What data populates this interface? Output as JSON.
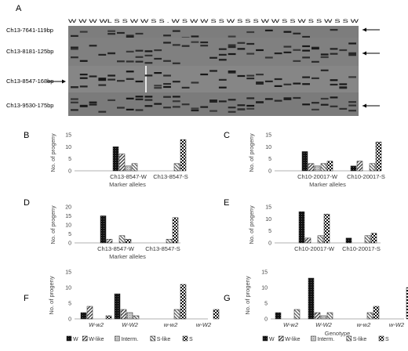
{
  "figure": {
    "panel_a": {
      "letter": "A",
      "lane_labels": "W W W WL S S W W S S . W S W W S S W S S S W W S S W S S W S S W",
      "markers": [
        "Ch13-7641-119bp",
        "Ch13-8181-125bp",
        "Ch13-8547-168bp",
        "Ch13-9530-175bp"
      ]
    },
    "legend": [
      "W",
      "W-like",
      "Interm.",
      "S-like",
      "S"
    ]
  },
  "chart_data": [
    {
      "panel": "B",
      "type": "bar",
      "categories": [
        "Ch13-8547-W",
        "Ch13-8547-S"
      ],
      "series": [
        {
          "name": "W",
          "values": [
            10,
            0
          ]
        },
        {
          "name": "W-like",
          "values": [
            7,
            0
          ]
        },
        {
          "name": "Interm.",
          "values": [
            2,
            0
          ]
        },
        {
          "name": "S-like",
          "values": [
            3,
            3
          ]
        },
        {
          "name": "S",
          "values": [
            0,
            13
          ]
        }
      ],
      "xlabel": "Marker alleles",
      "ylabel": "No. of progeny",
      "ylim": [
        0,
        15
      ],
      "yticks": [
        "0",
        "5",
        "10",
        "15"
      ],
      "legend": false
    },
    {
      "panel": "C",
      "type": "bar",
      "categories": [
        "Ch10-20017-W",
        "Ch10-20017-S"
      ],
      "series": [
        {
          "name": "W",
          "values": [
            8,
            2
          ]
        },
        {
          "name": "W-like",
          "values": [
            3,
            4
          ]
        },
        {
          "name": "Interm.",
          "values": [
            2,
            0
          ]
        },
        {
          "name": "S-like",
          "values": [
            3,
            3
          ]
        },
        {
          "name": "S",
          "values": [
            4,
            12
          ]
        }
      ],
      "xlabel": "Marker alleles",
      "ylabel": "No. of progeny",
      "ylim": [
        0,
        15
      ],
      "yticks": [
        "0",
        "5",
        "10",
        "15"
      ],
      "legend": false
    },
    {
      "panel": "D",
      "type": "bar",
      "categories": [
        "Ch13-8547-W",
        "Ch13-8547-S"
      ],
      "series": [
        {
          "name": "W",
          "values": [
            15,
            0
          ]
        },
        {
          "name": "W-like",
          "values": [
            2,
            0
          ]
        },
        {
          "name": "Interm.",
          "values": [
            0,
            0
          ]
        },
        {
          "name": "S-like",
          "values": [
            4,
            2
          ]
        },
        {
          "name": "S",
          "values": [
            2,
            14
          ]
        }
      ],
      "xlabel": "Marker alleles",
      "ylabel": "No. of progeny",
      "ylim": [
        0,
        20
      ],
      "yticks": [
        "0",
        "5",
        "10",
        "15",
        "20"
      ],
      "legend": false
    },
    {
      "panel": "E",
      "type": "bar",
      "categories": [
        "Ch10-20017-W",
        "Ch10-20017-S"
      ],
      "series": [
        {
          "name": "W",
          "values": [
            13,
            2
          ]
        },
        {
          "name": "W-like",
          "values": [
            2,
            0
          ]
        },
        {
          "name": "Interm.",
          "values": [
            0,
            0
          ]
        },
        {
          "name": "S-like",
          "values": [
            3,
            3
          ]
        },
        {
          "name": "S",
          "values": [
            12,
            4
          ]
        }
      ],
      "xlabel": "",
      "ylabel": "No. of progeny",
      "ylim": [
        0,
        15
      ],
      "yticks": [
        "0",
        "5",
        "10",
        "15"
      ],
      "legend": false
    },
    {
      "panel": "F",
      "type": "bar",
      "categories": [
        "W-w2",
        "W-W2",
        "w-w2",
        "w-W2"
      ],
      "series": [
        {
          "name": "W",
          "values": [
            2,
            8,
            0,
            0
          ]
        },
        {
          "name": "W-like",
          "values": [
            4,
            3,
            0,
            0
          ]
        },
        {
          "name": "Interm.",
          "values": [
            0,
            2,
            0,
            0
          ]
        },
        {
          "name": "S-like",
          "values": [
            0,
            1,
            3,
            0
          ]
        },
        {
          "name": "S",
          "values": [
            1,
            0,
            11,
            3
          ]
        }
      ],
      "xlabel": "",
      "ylabel": "No. of progeny",
      "ylim": [
        0,
        15
      ],
      "yticks": [
        "0",
        "5",
        "10",
        "15"
      ],
      "legend": true
    },
    {
      "panel": "G",
      "type": "bar",
      "categories": [
        "W-w2",
        "W-W2",
        "w-w2",
        "w-W2"
      ],
      "series": [
        {
          "name": "W",
          "values": [
            2,
            13,
            0,
            0
          ]
        },
        {
          "name": "W-like",
          "values": [
            0,
            2,
            0,
            0
          ]
        },
        {
          "name": "Interm.",
          "values": [
            0,
            1,
            0,
            0
          ]
        },
        {
          "name": "S-like",
          "values": [
            3,
            2,
            2,
            0
          ]
        },
        {
          "name": "S",
          "values": [
            0,
            0,
            4,
            10
          ]
        }
      ],
      "xlabel": "Genotype",
      "ylabel": "No. of progeny",
      "ylim": [
        0,
        15
      ],
      "yticks": [
        "0",
        "5",
        "10",
        "15"
      ],
      "legend": true
    }
  ]
}
